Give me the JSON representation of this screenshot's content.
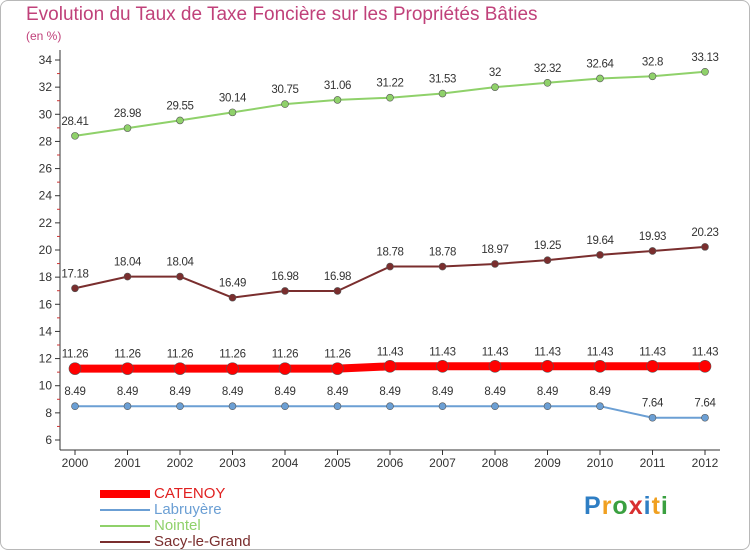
{
  "chart_data": {
    "type": "line",
    "title": "Evolution du Taux de Taxe Foncière sur les Propriétés Bâties",
    "subtitle": "(en %)",
    "x": [
      "2000",
      "2001",
      "2002",
      "2003",
      "2004",
      "2005",
      "2006",
      "2007",
      "2008",
      "2009",
      "2010",
      "2011",
      "2012"
    ],
    "y_ticks": [
      "6",
      "8",
      "10",
      "12",
      "14",
      "16",
      "18",
      "20",
      "22",
      "24",
      "26",
      "28",
      "30",
      "32",
      "34"
    ],
    "ylim": [
      6,
      34
    ],
    "grid": false,
    "legend_position": "bottom-left",
    "series": [
      {
        "name": "CATENOY",
        "color": "#ff0000",
        "values": [
          11.26,
          11.26,
          11.26,
          11.26,
          11.26,
          11.26,
          11.43,
          11.43,
          11.43,
          11.43,
          11.43,
          11.43,
          11.43
        ],
        "labels": [
          "11.26",
          "11.26",
          "11.26",
          "11.26",
          "11.26",
          "11.26",
          "11.43",
          "11.43",
          "11.43",
          "11.43",
          "11.43",
          "11.43",
          "11.43"
        ]
      },
      {
        "name": "Labruyère",
        "color": "#6b9fd4",
        "values": [
          8.49,
          8.49,
          8.49,
          8.49,
          8.49,
          8.49,
          8.49,
          8.49,
          8.49,
          8.49,
          8.49,
          7.64,
          7.64
        ],
        "labels": [
          "8.49",
          "8.49",
          "8.49",
          "8.49",
          "8.49",
          "8.49",
          "8.49",
          "8.49",
          "8.49",
          "8.49",
          "8.49",
          "7.64",
          "7.64"
        ]
      },
      {
        "name": "Nointel",
        "color": "#8fd16a",
        "values": [
          28.41,
          28.98,
          29.55,
          30.14,
          30.75,
          31.06,
          31.22,
          31.53,
          32,
          32.32,
          32.64,
          32.8,
          33.13
        ],
        "labels": [
          "28.41",
          "28.98",
          "29.55",
          "30.14",
          "30.75",
          "31.06",
          "31.22",
          "31.53",
          "32",
          "32.32",
          "32.64",
          "32.8",
          "33.13"
        ]
      },
      {
        "name": "Sacy-le-Grand",
        "color": "#7a2e2e",
        "values": [
          17.18,
          18.04,
          18.04,
          16.49,
          16.98,
          16.98,
          18.78,
          18.78,
          18.97,
          19.25,
          19.64,
          19.93,
          20.23
        ],
        "labels": [
          "17.18",
          "18.04",
          "18.04",
          "16.49",
          "16.98",
          "16.98",
          "18.78",
          "18.78",
          "18.97",
          "19.25",
          "19.64",
          "19.93",
          "20.23"
        ]
      }
    ]
  },
  "logo": {
    "text": "Proxiti"
  }
}
